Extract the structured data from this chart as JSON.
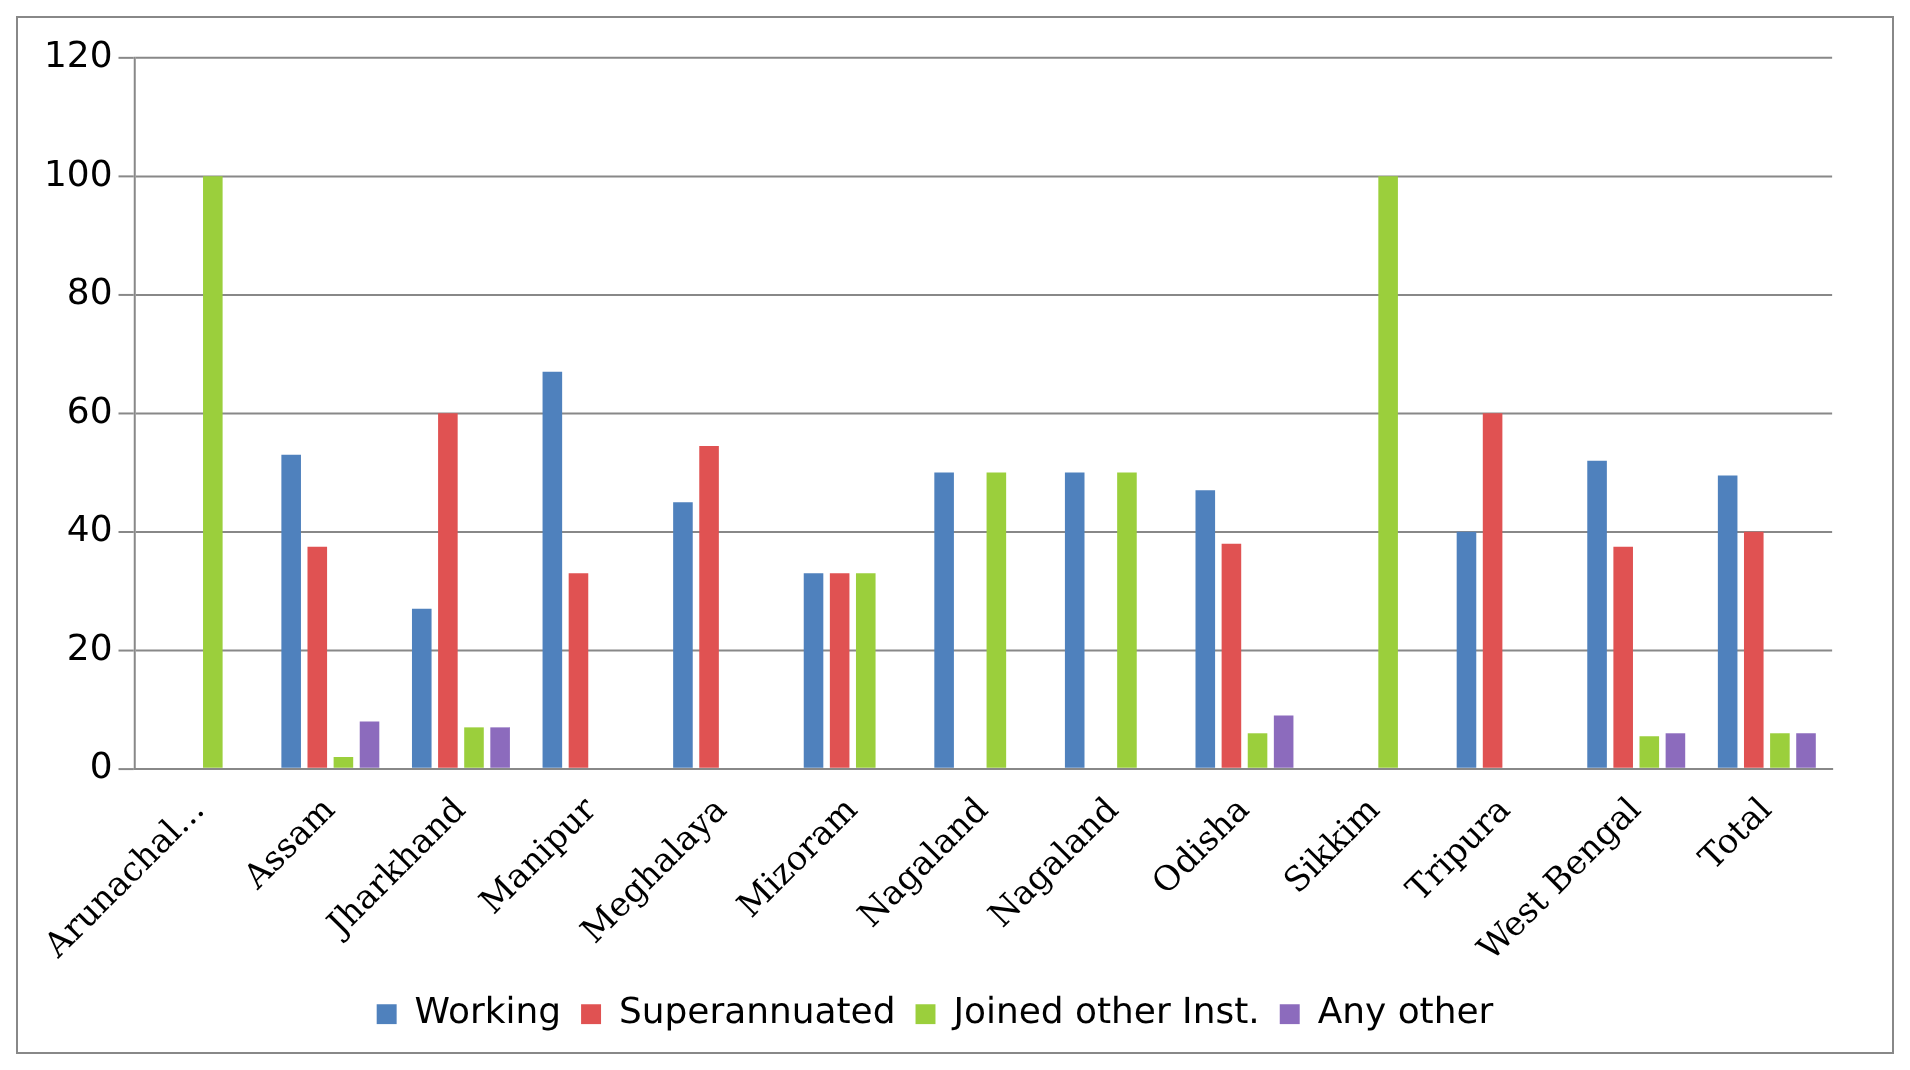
{
  "chart_data": {
    "type": "bar",
    "categories": [
      "Arunachal...",
      "Assam",
      "Jharkhand",
      "Manipur",
      "Meghalaya",
      "Mizoram",
      "Nagaland",
      "Nagaland",
      "Odisha",
      "Sikkim",
      "Tripura",
      "West Bengal",
      "Total"
    ],
    "series": [
      {
        "name": "Working",
        "color": "#4f81bd",
        "values": [
          0,
          53,
          27,
          67,
          45,
          33,
          50,
          50,
          47,
          0,
          40,
          52,
          49.5
        ]
      },
      {
        "name": "Superannuated",
        "color": "#e05252",
        "values": [
          0,
          37.5,
          60,
          33,
          54.5,
          33,
          0,
          0,
          38,
          0,
          60,
          37.5,
          40
        ]
      },
      {
        "name": "Joined other Inst.",
        "color": "#9bcf3c",
        "values": [
          100,
          2,
          7,
          0,
          0,
          33,
          50,
          50,
          6,
          100,
          0,
          5.5,
          6
        ]
      },
      {
        "name": "Any other",
        "color": "#8c6bbd",
        "values": [
          0,
          8,
          7,
          0,
          0,
          0,
          0,
          0,
          9,
          0,
          0,
          6,
          6
        ]
      }
    ],
    "ylim": [
      0,
      120
    ],
    "yticks": [
      0,
      20,
      40,
      60,
      80,
      100,
      120
    ],
    "grid": "y",
    "legend": "bottom"
  }
}
